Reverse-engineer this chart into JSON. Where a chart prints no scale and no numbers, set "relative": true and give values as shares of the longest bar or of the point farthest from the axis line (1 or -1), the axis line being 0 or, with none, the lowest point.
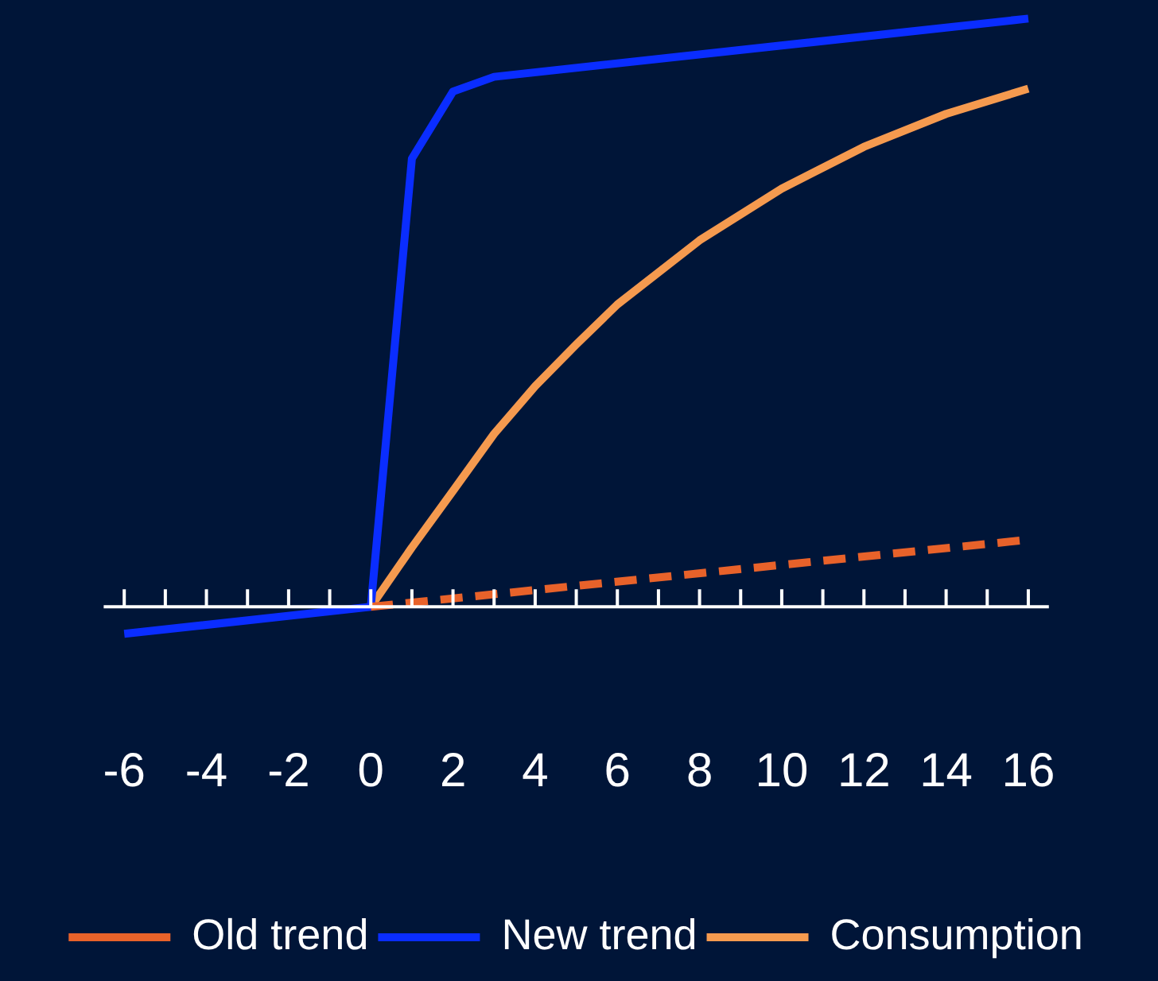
{
  "chart_data": {
    "type": "line",
    "relative": true,
    "xlim": [
      -6.5,
      16.5
    ],
    "xticks": [
      -6,
      {
        "value": -5,
        "label": null
      },
      -4,
      {
        "value": -3,
        "label": null
      },
      -2,
      {
        "value": -1,
        "label": null
      },
      0,
      {
        "value": 1,
        "label": null
      },
      2,
      {
        "value": 3,
        "label": null
      },
      4,
      {
        "value": 5,
        "label": null
      },
      6,
      {
        "value": 7,
        "label": null
      },
      8,
      {
        "value": 9,
        "label": null
      },
      10,
      {
        "value": 11,
        "label": null
      },
      12,
      {
        "value": 13,
        "label": null
      },
      14,
      {
        "value": 15,
        "label": null
      },
      16
    ],
    "legend": "bottom",
    "marker": "none",
    "series": [
      {
        "name": "Old trend",
        "color": "#e8622a",
        "line_style": "dashed",
        "x": [
          0,
          16
        ],
        "values": [
          0,
          0.114
        ]
      },
      {
        "name": "New trend",
        "color": "#0a2dff",
        "line_style": "solid",
        "x": [
          -6,
          0,
          1,
          2,
          3,
          16
        ],
        "values": [
          -0.046,
          0,
          0.762,
          0.876,
          0.901,
          1
        ]
      },
      {
        "name": "Consumption",
        "color": "#f59a4f",
        "line_style": "solid",
        "x": [
          0,
          1,
          2,
          3,
          4,
          5,
          6,
          8,
          10,
          12,
          14,
          16
        ],
        "values": [
          0,
          0.101,
          0.197,
          0.294,
          0.375,
          0.446,
          0.514,
          0.623,
          0.711,
          0.782,
          0.838,
          0.881
        ]
      }
    ]
  }
}
